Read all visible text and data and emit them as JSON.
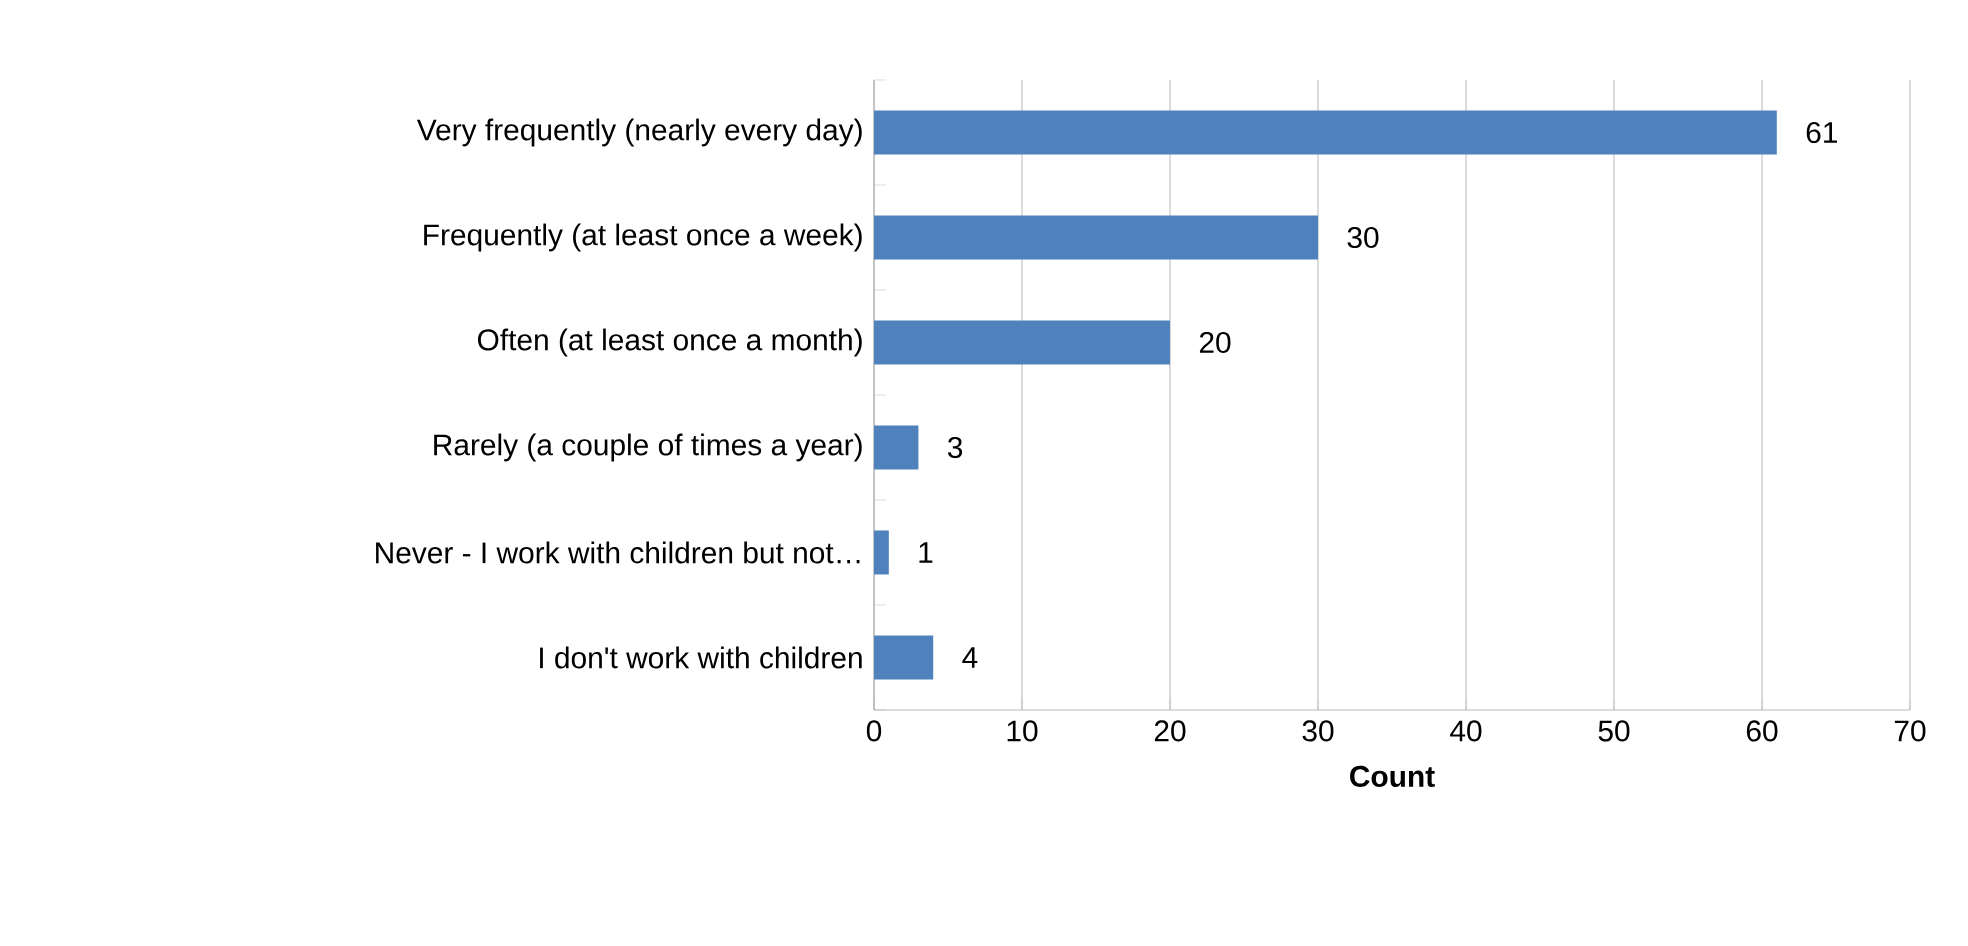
{
  "chart_data": {
    "type": "bar",
    "orientation": "horizontal",
    "xlabel": "Count",
    "categories": [
      "Very frequently (nearly every day)",
      "Frequently (at least once a week)",
      "Often (at least once a month)",
      "Rarely (a couple of times a year)",
      "Never - I work with children but not…",
      "I don't work with children"
    ],
    "values": [
      61,
      30,
      20,
      3,
      1,
      4
    ],
    "color": "#4f81bd",
    "data_labels": true,
    "xlim": [
      0,
      70
    ],
    "xticks": [
      0,
      10,
      20,
      30,
      40,
      50,
      60,
      70
    ],
    "grid": "x"
  }
}
